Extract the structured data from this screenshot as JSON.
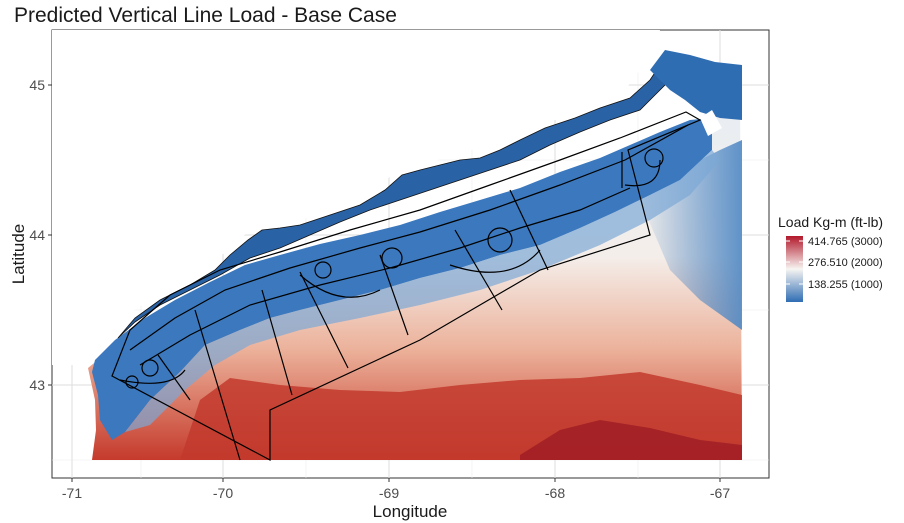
{
  "title": "Predicted Vertical Line Load - Base Case",
  "colors": {
    "low": "#2f6db3",
    "mid": "#f7f5f2",
    "high": "#b2182b"
  },
  "x_axis": {
    "label": "Longitude",
    "ticks": [
      "-71",
      "-70",
      "-69",
      "-68",
      "-67"
    ]
  },
  "y_axis": {
    "label": "Latitude",
    "ticks": [
      "43",
      "44",
      "45"
    ]
  },
  "legend": {
    "title": "Load Kg-m (ft-lb)",
    "labels": [
      "414.765 (3000)",
      "276.510 (2000)",
      "138.255 (1000)"
    ]
  }
}
